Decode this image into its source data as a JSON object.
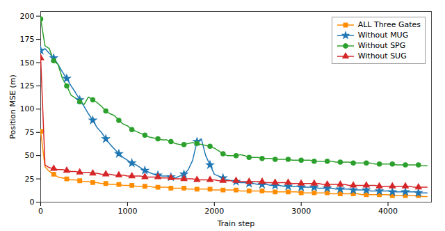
{
  "chart_data": {
    "type": "line",
    "xlabel": "Train step",
    "ylabel": "Position MSE (m)",
    "x": [
      0,
      50,
      100,
      150,
      200,
      250,
      300,
      350,
      400,
      450,
      500,
      550,
      600,
      650,
      700,
      750,
      800,
      850,
      900,
      950,
      1000,
      1050,
      1100,
      1150,
      1200,
      1250,
      1300,
      1350,
      1400,
      1450,
      1500,
      1550,
      1600,
      1650,
      1700,
      1750,
      1800,
      1850,
      1900,
      1950,
      2000,
      2050,
      2100,
      2150,
      2200,
      2250,
      2300,
      2350,
      2400,
      2450,
      2500,
      2550,
      2600,
      2650,
      2700,
      2750,
      2800,
      2850,
      2900,
      2950,
      3000,
      3050,
      3100,
      3150,
      3200,
      3250,
      3300,
      3350,
      3400,
      3450,
      3500,
      3550,
      3600,
      3650,
      3700,
      3750,
      3800,
      3850,
      3900,
      3950,
      4000,
      4050,
      4100,
      4150,
      4200,
      4250,
      4300,
      4350,
      4400,
      4450
    ],
    "series": [
      {
        "name": "ALL Three Gates",
        "color": "#ff8c00",
        "marker": "square",
        "values": [
          76,
          38,
          33,
          30,
          27,
          26,
          25,
          24,
          24,
          23,
          22,
          22,
          21,
          21,
          20,
          20,
          19,
          19,
          19,
          18,
          18,
          18,
          17,
          17,
          17,
          17,
          16,
          16,
          16,
          16,
          15,
          15,
          15,
          15,
          14,
          14,
          14,
          14,
          14,
          14,
          13,
          13,
          13,
          13,
          13,
          13,
          12,
          12,
          12,
          12,
          12,
          12,
          11,
          11,
          11,
          11,
          11,
          11,
          11,
          11,
          10,
          10,
          10,
          10,
          10,
          10,
          10,
          9,
          9,
          9,
          9,
          9,
          9,
          9,
          8,
          8,
          8,
          8,
          8,
          8,
          8,
          7,
          7,
          7,
          7,
          7,
          7,
          7,
          6,
          6
        ]
      },
      {
        "name": "Without MUG",
        "color": "#1f77b4",
        "marker": "star",
        "values": [
          163,
          165,
          160,
          155,
          148,
          140,
          133,
          125,
          118,
          110,
          103,
          95,
          88,
          80,
          75,
          68,
          62,
          57,
          52,
          48,
          45,
          42,
          40,
          37,
          34,
          32,
          30,
          29,
          28,
          28,
          27,
          26,
          28,
          30,
          35,
          45,
          65,
          68,
          50,
          40,
          30,
          28,
          26,
          24,
          23,
          22,
          21,
          21,
          20,
          20,
          19,
          19,
          19,
          18,
          18,
          18,
          17,
          17,
          17,
          17,
          16,
          16,
          16,
          16,
          15,
          15,
          15,
          15,
          14,
          14,
          14,
          14,
          13,
          13,
          13,
          13,
          12,
          12,
          12,
          12,
          12,
          11,
          11,
          11,
          11,
          11,
          11,
          10,
          10,
          10
        ]
      },
      {
        "name": "Without SPG",
        "color": "#2ca02c",
        "marker": "circle",
        "values": [
          197,
          168,
          165,
          152,
          148,
          133,
          125,
          115,
          112,
          108,
          105,
          113,
          110,
          107,
          103,
          98,
          95,
          93,
          88,
          84,
          82,
          78,
          76,
          74,
          72,
          70,
          69,
          68,
          67,
          67,
          65,
          63,
          62,
          62,
          63,
          64,
          63,
          62,
          61,
          60,
          58,
          55,
          52,
          50,
          50,
          50,
          51,
          50,
          48,
          48,
          48,
          47,
          47,
          47,
          46,
          46,
          46,
          46,
          45,
          45,
          45,
          45,
          45,
          44,
          44,
          44,
          44,
          44,
          43,
          43,
          43,
          43,
          42,
          42,
          42,
          42,
          42,
          41,
          41,
          41,
          41,
          41,
          40,
          40,
          40,
          40,
          40,
          40,
          39,
          39
        ]
      },
      {
        "name": "Without SUG",
        "color": "#d62728",
        "marker": "triangle",
        "values": [
          155,
          40,
          37,
          36,
          35,
          35,
          34,
          33,
          33,
          32,
          32,
          32,
          31,
          31,
          30,
          30,
          30,
          29,
          29,
          29,
          28,
          28,
          28,
          28,
          27,
          27,
          27,
          27,
          26,
          26,
          26,
          25,
          25,
          25,
          25,
          25,
          24,
          24,
          24,
          24,
          24,
          23,
          23,
          23,
          23,
          23,
          22,
          22,
          22,
          22,
          22,
          22,
          21,
          21,
          21,
          21,
          21,
          21,
          20,
          20,
          20,
          20,
          20,
          20,
          20,
          19,
          19,
          19,
          19,
          19,
          19,
          18,
          18,
          18,
          18,
          18,
          18,
          18,
          17,
          17,
          17,
          17,
          17,
          17,
          17,
          17,
          16,
          16,
          16,
          16
        ]
      }
    ],
    "xlim": [
      0,
      4500
    ],
    "ylim": [
      0,
      205
    ],
    "xticks": [
      0,
      1000,
      2000,
      3000,
      4000
    ],
    "yticks": [
      0,
      25,
      50,
      75,
      100,
      125,
      150,
      175,
      200
    ],
    "grid": false,
    "legend": "upper right"
  }
}
